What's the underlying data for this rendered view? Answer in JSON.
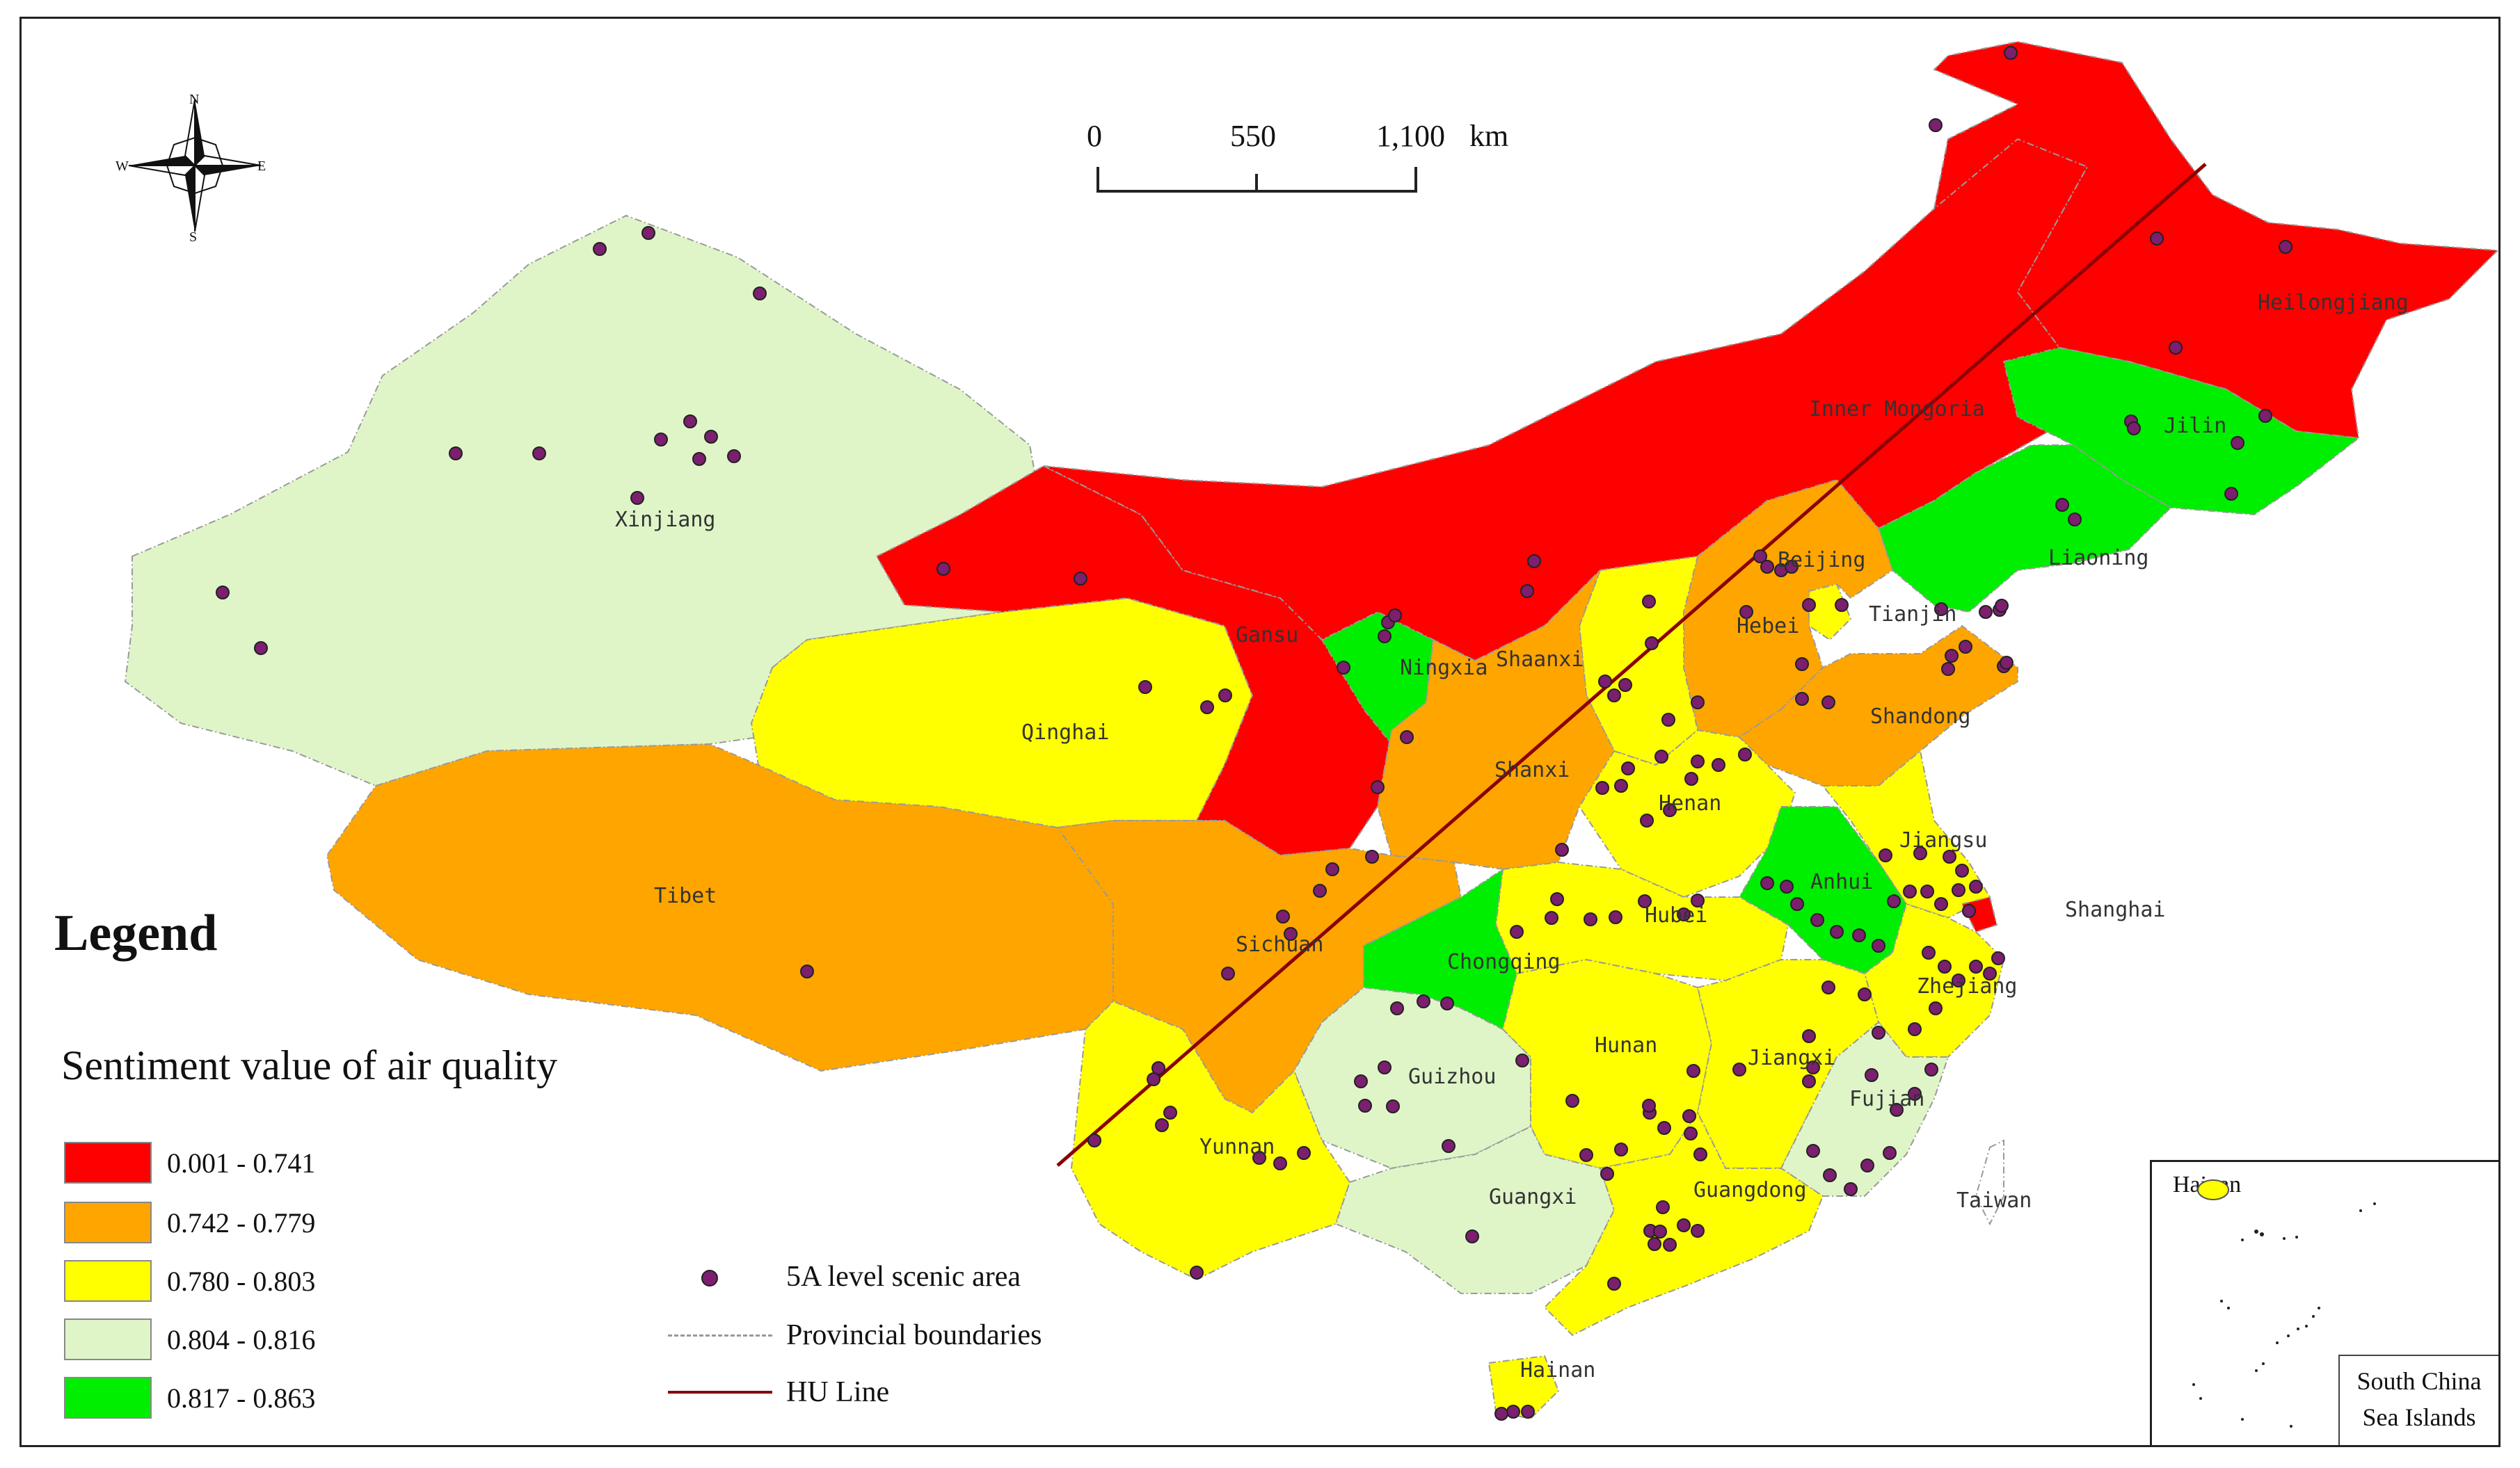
{
  "legend": {
    "title": "Legend",
    "subtitle": "Sentiment value of air quality",
    "classes": [
      {
        "range": "0.001 - 0.741",
        "color": "#ff0000"
      },
      {
        "range": "0.742 - 0.779",
        "color": "#ffa500"
      },
      {
        "range": "0.780 - 0.803",
        "color": "#ffff00"
      },
      {
        "range": "0.804 - 0.816",
        "color": "#dff5c8"
      },
      {
        "range": "0.817 - 0.863",
        "color": "#00ee00"
      }
    ],
    "symbols": [
      {
        "label": "5A level scenic area",
        "kind": "point",
        "color": "#7b1f6e"
      },
      {
        "label": "Provincial boundaries",
        "kind": "dash-dot",
        "color": "#999999"
      },
      {
        "label": "HU Line",
        "kind": "line",
        "color": "#8b0000"
      }
    ]
  },
  "scale_bar": {
    "labels": [
      "0",
      "550",
      "1,100"
    ],
    "unit": "km"
  },
  "compass": {
    "n": "N",
    "s": "S",
    "e": "E",
    "w": "W"
  },
  "provinces": [
    {
      "name": "Xinjiang",
      "class": 3
    },
    {
      "name": "Tibet",
      "class": 1
    },
    {
      "name": "Qinghai",
      "class": 2
    },
    {
      "name": "Gansu",
      "class": 0
    },
    {
      "name": "Ningxia",
      "class": 4
    },
    {
      "name": "Shaanxi",
      "class": 0
    },
    {
      "name": "Shanxi",
      "class": 0
    },
    {
      "name": "Inner Mongoria",
      "class": 4
    },
    {
      "name": "Heilongjiang",
      "class": 4
    },
    {
      "name": "Jilin",
      "class": 3
    },
    {
      "name": "Liaoning",
      "class": 2
    },
    {
      "name": "Beijing",
      "class": 1
    },
    {
      "name": "Tianjin",
      "class": 2
    },
    {
      "name": "Hebei",
      "class": 1
    },
    {
      "name": "Shandong",
      "class": 1
    },
    {
      "name": "Henan",
      "class": 2
    },
    {
      "name": "Jiangsu",
      "class": 2
    },
    {
      "name": "Anhui",
      "class": 4
    },
    {
      "name": "Shanghai",
      "class": 0
    },
    {
      "name": "Zhejiang",
      "class": 2
    },
    {
      "name": "Hubei",
      "class": 2
    },
    {
      "name": "Sichuan",
      "class": 1
    },
    {
      "name": "Chongqing",
      "class": 4
    },
    {
      "name": "Guizhou",
      "class": 3
    },
    {
      "name": "Yunnan",
      "class": 2
    },
    {
      "name": "Hunan",
      "class": 2
    },
    {
      "name": "Jiangxi",
      "class": 2
    },
    {
      "name": "Fujian",
      "class": 3
    },
    {
      "name": "Guangxi",
      "class": 3
    },
    {
      "name": "Guangdong",
      "class": 2
    },
    {
      "name": "Hainan",
      "class": 2
    },
    {
      "name": "Taiwan",
      "class": 5
    }
  ],
  "inset": {
    "title": "Hainan",
    "caption_line1": "South China",
    "caption_line2": "Sea Islands"
  }
}
